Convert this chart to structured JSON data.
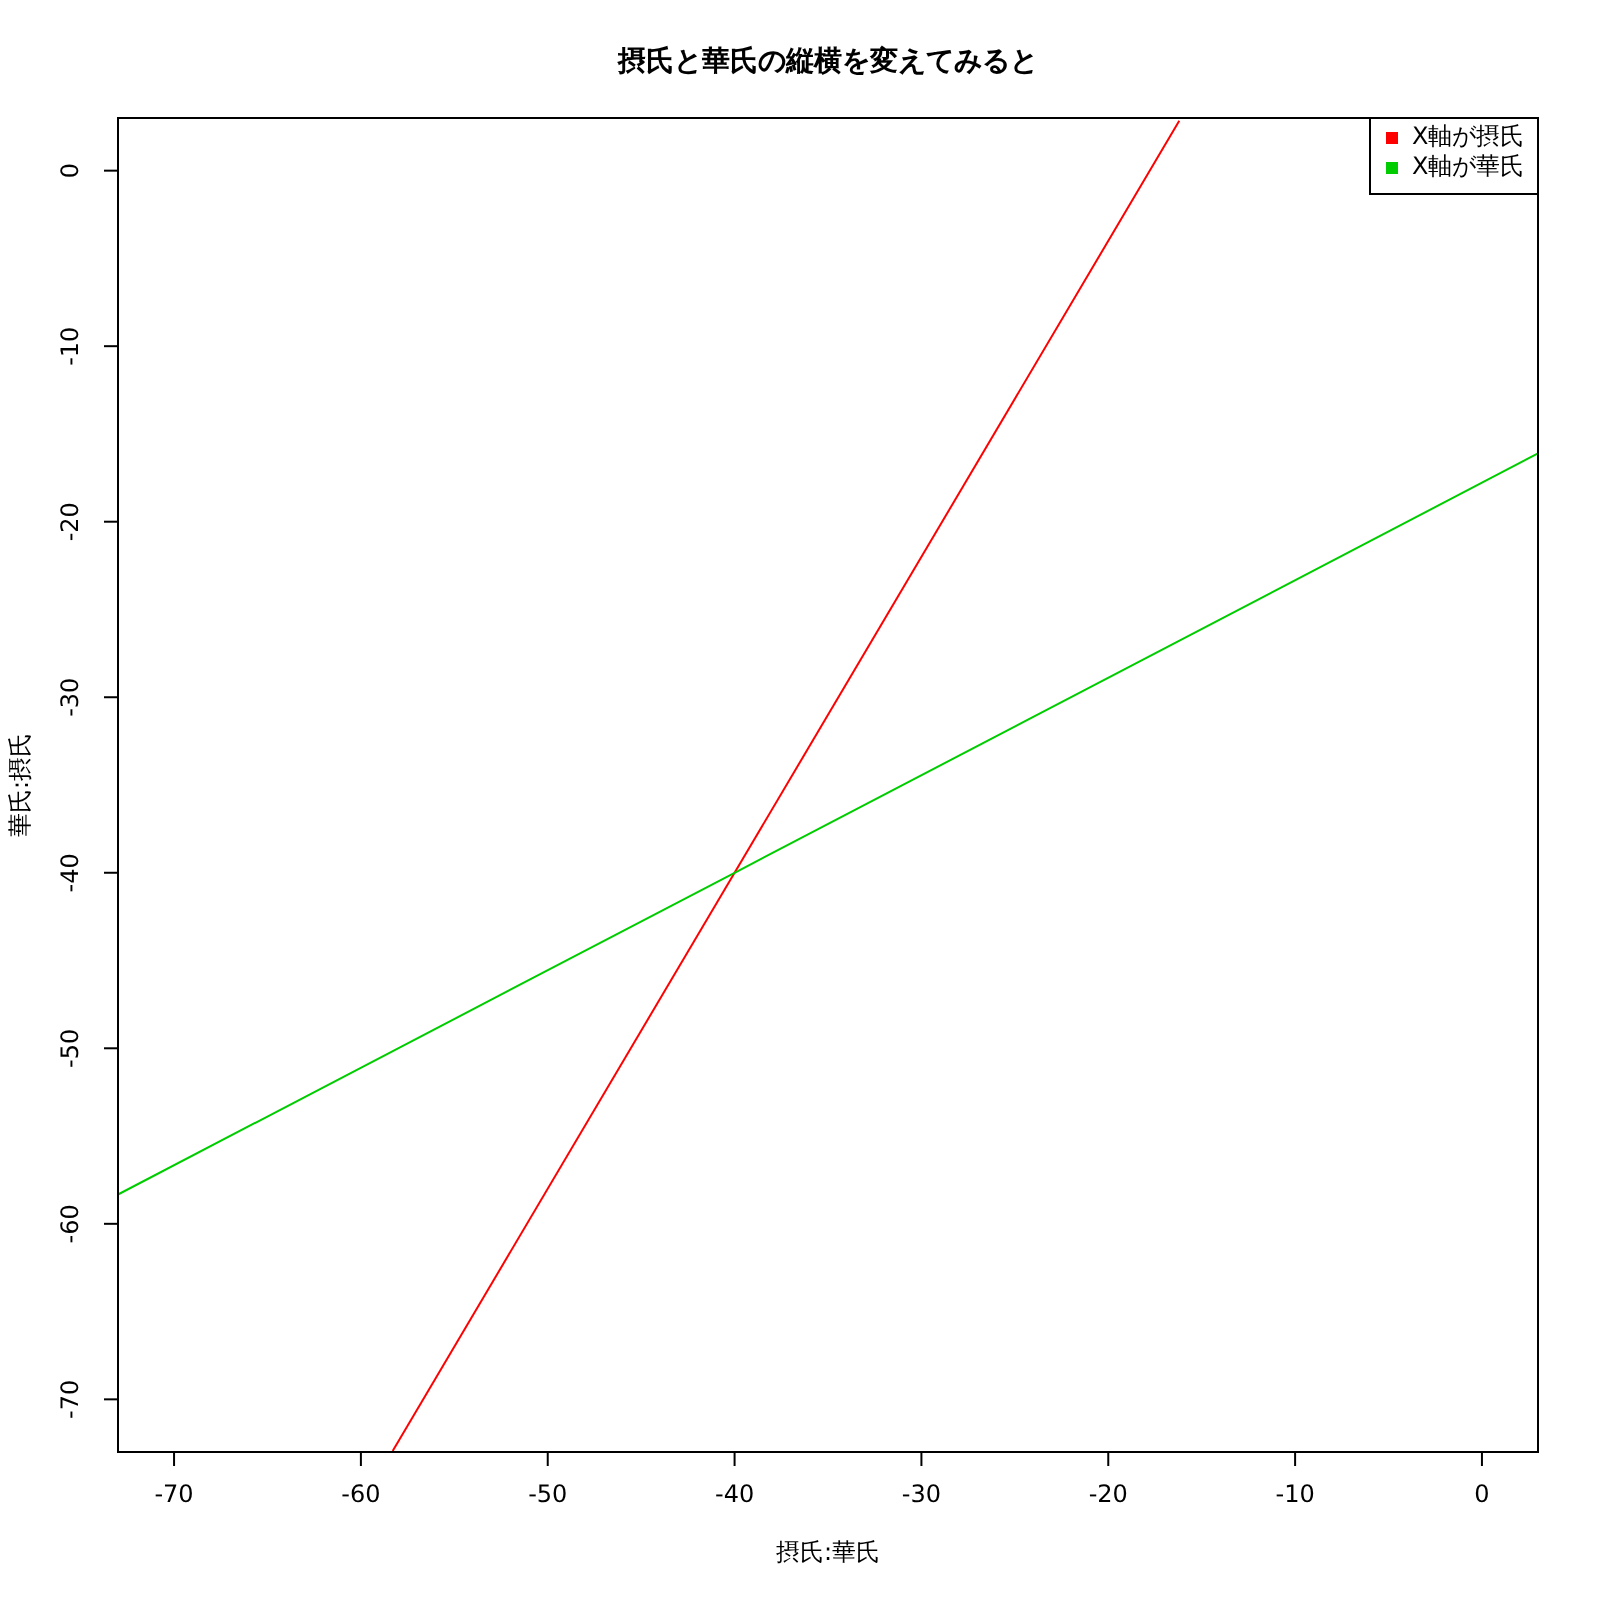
{
  "chart_data": {
    "type": "line",
    "title": "摂氏と華氏の縦横を変えてみると",
    "xlabel": "摂氏:華氏",
    "ylabel": "華氏:摂氏",
    "series": [
      {
        "name": "X軸が摂氏",
        "color": "#ff0000",
        "x": [
          -58.3,
          -40,
          -16.2
        ],
        "values": [
          -72.94,
          -40,
          2.84
        ]
      },
      {
        "name": "X軸が華氏",
        "color": "#00cd00",
        "x": [
          -73,
          -40,
          3
        ],
        "values": [
          -58.33,
          -40,
          -16.11
        ]
      }
    ],
    "xlim": [
      -73,
      3
    ],
    "ylim": [
      -73,
      3
    ],
    "xticks": [
      -70,
      -60,
      -50,
      -40,
      -30,
      -20,
      -10,
      0
    ],
    "yticks": [
      -70,
      -60,
      -50,
      -40,
      -30,
      -20,
      -10,
      0
    ],
    "grid": false,
    "legend": "top right",
    "marker": "none",
    "line_style": "solid"
  }
}
